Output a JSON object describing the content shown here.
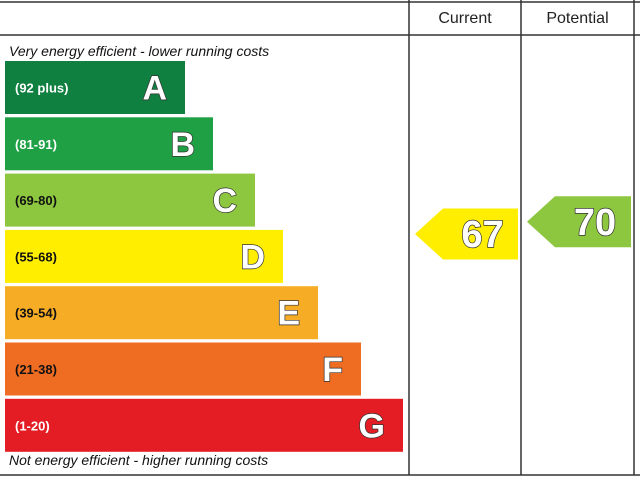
{
  "chart_data": {
    "type": "bar",
    "columns": [
      "Current",
      "Potential"
    ],
    "top_note": "Very energy efficient - lower running costs",
    "bottom_note": "Not energy efficient - higher running costs",
    "bands": [
      {
        "letter": "A",
        "range": "(92 plus)",
        "min": 92,
        "max": 100,
        "color": "#0f8040",
        "range_color": "#ffffff"
      },
      {
        "letter": "B",
        "range": "(81-91)",
        "min": 81,
        "max": 91,
        "color": "#1fa044",
        "range_color": "#ffffff"
      },
      {
        "letter": "C",
        "range": "(69-80)",
        "min": 69,
        "max": 80,
        "color": "#8dc63f",
        "range_color": "#111111"
      },
      {
        "letter": "D",
        "range": "(55-68)",
        "min": 55,
        "max": 68,
        "color": "#ffee00",
        "range_color": "#111111"
      },
      {
        "letter": "E",
        "range": "(39-54)",
        "min": 39,
        "max": 54,
        "color": "#f6ac25",
        "range_color": "#111111"
      },
      {
        "letter": "F",
        "range": "(21-38)",
        "min": 21,
        "max": 38,
        "color": "#ee6d23",
        "range_color": "#111111"
      },
      {
        "letter": "G",
        "range": "(1-20)",
        "min": 1,
        "max": 20,
        "color": "#e31d23",
        "range_color": "#ffffff"
      }
    ],
    "ratings": [
      {
        "column": "Current",
        "value": 67,
        "band": "D",
        "color": "#ffee00"
      },
      {
        "column": "Potential",
        "value": 70,
        "band": "C",
        "color": "#8dc63f"
      }
    ]
  }
}
